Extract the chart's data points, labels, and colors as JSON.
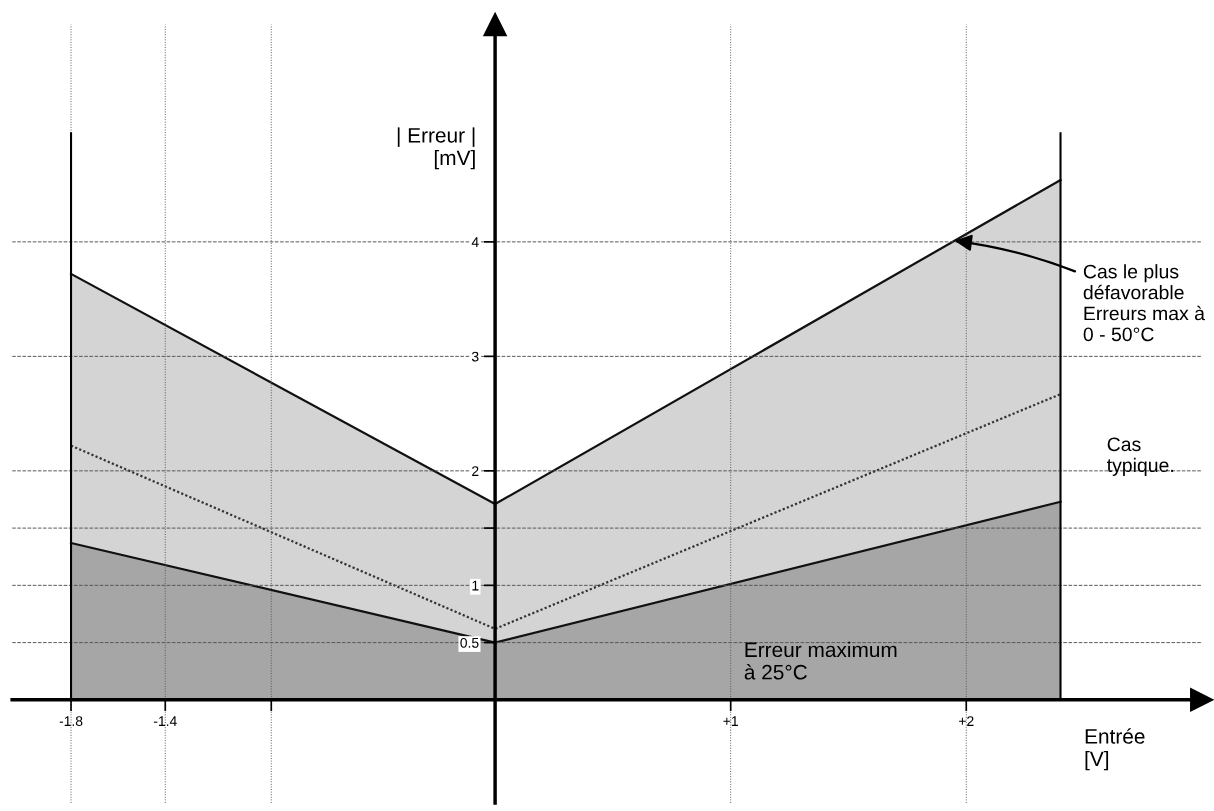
{
  "chart_data": {
    "type": "area",
    "xlabel": "Entrée\n[V]",
    "ylabel": "| Erreur |\n[mV]",
    "xlim": [
      -2.05,
      3.0
    ],
    "ylim": [
      -0.9,
      5.9
    ],
    "xticks": [
      -1.8,
      -1.4,
      {
        "value": -0.95,
        "label": null
      },
      {
        "value": 1,
        "label": "+1"
      },
      {
        "value": 2,
        "label": "+2"
      }
    ],
    "yticks": [
      0.5,
      1,
      {
        "value": 1.5,
        "label": null
      },
      2,
      3,
      4
    ],
    "grid": true,
    "series": [
      {
        "color": "#d4d4d4",
        "x": [
          -1.8,
          0,
          2.4
        ],
        "values": [
          3.72,
          1.71,
          4.54
        ],
        "line_style": "solid"
      },
      {
        "type": "line",
        "color": "#333333",
        "x": [
          -1.8,
          0,
          2.4
        ],
        "values": [
          2.22,
          0.62,
          2.67
        ],
        "line_style": "dotted"
      },
      {
        "color": "#a6a6a6",
        "x": [
          -1.8,
          0,
          2.4
        ],
        "values": [
          1.37,
          0.5,
          1.73
        ],
        "line_style": "solid"
      }
    ],
    "ref_lines": [
      {
        "axis": "x",
        "value": -1.8,
        "label": null
      },
      {
        "axis": "x",
        "value": 2.4,
        "label": null
      }
    ],
    "annotations": [
      {
        "text": "Cas le plus\ndéfavorable\nErreurs max à\n0 - 50°C",
        "x": 1.95,
        "y": 4.01
      },
      "Cas\ntypique.",
      "Erreur maximum\nà 25°C"
    ]
  }
}
